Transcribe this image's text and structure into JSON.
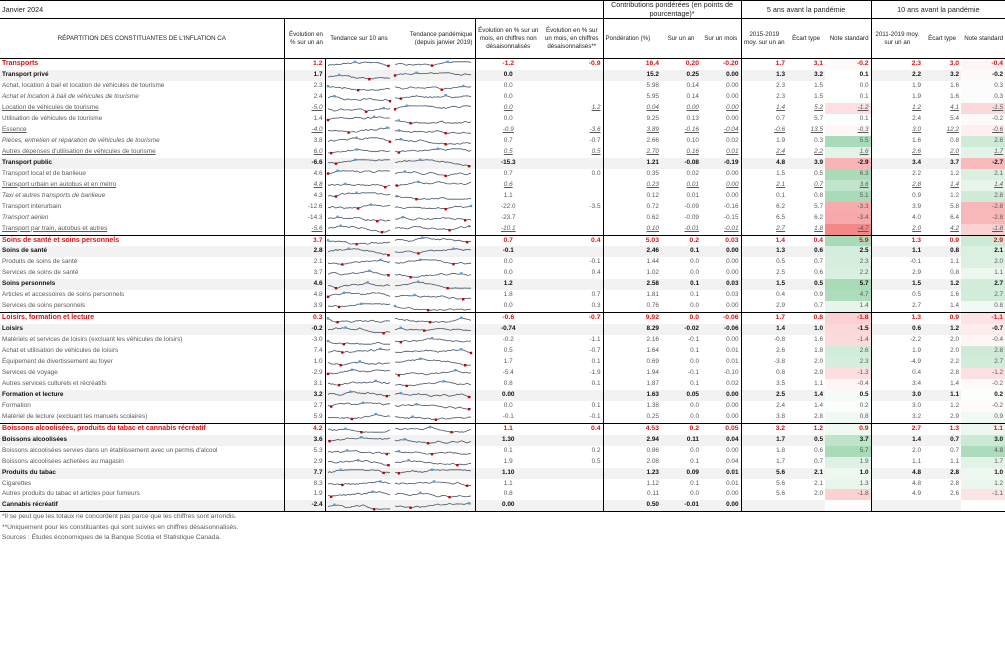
{
  "title": "Janvier 2024",
  "group_headers": {
    "contrib": "Contributions pondérées (en points de pourcentage)*",
    "five_year": "5 ans avant la pandémie",
    "ten_year": "10 ans avant la pandémie"
  },
  "columns": {
    "label": "RÉPARTITION DES CONSTITUANTES DE L'INFLATION CA",
    "yoy": "Évolution en % sur un an",
    "trend10": "Tendance sur 10 ans",
    "trend_pandemic": "Tendance pandémique (depuis janvier 2019)",
    "mom_nsa": "Évolution en % sur un mois, en chiffres non désaisonnalisés",
    "mom_sa": "Évolution en % sur un mois, en chiffres désaisonnalisés**",
    "weight": "Pondération (%)",
    "c_yoy": "Sur un an",
    "c_mom": "Sur un mois",
    "avg5": "2015-2019 moy. sur un an",
    "sd5": "Écart type",
    "z5": "Note standard",
    "avg10": "2011-2019 moy. sur un an",
    "sd10": "Écart type",
    "z10": "Note standard"
  },
  "colors": {
    "section_red": "#e01010",
    "subtotal_bg": "#f2f2f2",
    "spark_line": "#44546a",
    "spark_high": "#5b9bd5",
    "spark_low": "#c00000",
    "z_pos_strong": "#a9dbb8",
    "z_neg_strong": "#f4878a"
  },
  "rows": [
    {
      "type": "sec",
      "label": "Transports",
      "yoy": "1.2",
      "mom_nsa": "-1.2",
      "mom_sa": "-0.9",
      "weight": "16.4",
      "c_yoy": "0.20",
      "c_mom": "-0.20",
      "avg5": "1.7",
      "sd5": "3.1",
      "z5": "-0.2",
      "avg10": "2.3",
      "sd10": "3.0",
      "z10": "-0.4"
    },
    {
      "type": "sub",
      "label": "Transport privé",
      "yoy": "1.7",
      "mom_nsa": "0.0",
      "mom_sa": "",
      "weight": "15.2",
      "c_yoy": "0.25",
      "c_mom": "0.00",
      "avg5": "1.3",
      "sd5": "3.2",
      "z5": "0.1",
      "avg10": "2.2",
      "sd10": "3.2",
      "z10": "-0.2"
    },
    {
      "type": "item",
      "label": "Achat, location à bail et location de véhicules de tourisme",
      "yoy": "2.3",
      "mom_nsa": "0.0",
      "mom_sa": "",
      "weight": "5.98",
      "c_yoy": "0.14",
      "c_mom": "0.00",
      "avg5": "2.3",
      "sd5": "1.5",
      "z5": "0.0",
      "avg10": "1.9",
      "sd10": "1.6",
      "z10": "0.3"
    },
    {
      "type": "it",
      "label": "Achat et location à bail de véhicules de tourisme",
      "yoy": "2.4",
      "mom_nsa": "0.0",
      "mom_sa": "",
      "weight": "5.95",
      "c_yoy": "0.14",
      "c_mom": "0.00",
      "avg5": "2.3",
      "sd5": "1.5",
      "z5": "0.1",
      "avg10": "1.9",
      "sd10": "1.6",
      "z10": "0.3"
    },
    {
      "type": "ul",
      "label": "Location de véhicules de tourisme",
      "yoy": "-5.0",
      "mom_nsa": "0.0",
      "mom_sa": "1.2",
      "weight": "0.04",
      "c_yoy": "0.00",
      "c_mom": "0.00",
      "avg5": "1.4",
      "sd5": "5.2",
      "z5": "-1.2",
      "avg10": "1.2",
      "sd10": "4.1",
      "z10": "-1.5"
    },
    {
      "type": "item",
      "label": "Utilisation de véhicules de tourisme",
      "yoy": "1.4",
      "mom_nsa": "0.0",
      "mom_sa": "",
      "weight": "9.25",
      "c_yoy": "0.13",
      "c_mom": "0.00",
      "avg5": "0.7",
      "sd5": "5.7",
      "z5": "0.1",
      "avg10": "2.4",
      "sd10": "5.4",
      "z10": "-0.2"
    },
    {
      "type": "ul",
      "label": "Essence",
      "yoy": "-4.0",
      "mom_nsa": "-0.9",
      "mom_sa": "-3.6",
      "weight": "3.89",
      "c_yoy": "-0.16",
      "c_mom": "-0.04",
      "avg5": "-0.6",
      "sd5": "13.5",
      "z5": "-0.3",
      "avg10": "3.0",
      "sd10": "12.2",
      "z10": "-0.6"
    },
    {
      "type": "it",
      "label": "Pièces, entretien et réparation de véhicules de tourisme",
      "yoy": "3.8",
      "mom_nsa": "0.7",
      "mom_sa": "-0.7",
      "weight": "2.66",
      "c_yoy": "0.10",
      "c_mom": "0.02",
      "avg5": "1.9",
      "sd5": "0.3",
      "z5": "5.5",
      "avg10": "1.6",
      "sd10": "0.8",
      "z10": "2.8"
    },
    {
      "type": "ul",
      "label": "Autres dépenses d'utilisation de véhicules de tourisme",
      "yoy": "6.0",
      "mom_nsa": "0.5",
      "mom_sa": "0.5",
      "weight": "2.70",
      "c_yoy": "0.16",
      "c_mom": "0.01",
      "avg5": "2.4",
      "sd5": "2.2",
      "z5": "1.6",
      "avg10": "2.6",
      "sd10": "2.0",
      "z10": "1.7"
    },
    {
      "type": "sub",
      "label": "Transport public",
      "yoy": "-6.6",
      "mom_nsa": "-15.3",
      "mom_sa": "",
      "weight": "1.21",
      "c_yoy": "-0.08",
      "c_mom": "-0.19",
      "avg5": "4.8",
      "sd5": "3.9",
      "z5": "-2.9",
      "avg10": "3.4",
      "sd10": "3.7",
      "z10": "-2.7"
    },
    {
      "type": "item",
      "label": "Transport local et de banlieue",
      "yoy": "4.6",
      "mom_nsa": "0.7",
      "mom_sa": "0.0",
      "weight": "0.35",
      "c_yoy": "0.02",
      "c_mom": "0.00",
      "avg5": "1.5",
      "sd5": "0.5",
      "z5": "6.3",
      "avg10": "2.2",
      "sd10": "1.2",
      "z10": "2.1"
    },
    {
      "type": "ul",
      "label": "Transport urbain en autobus et en métro",
      "yoy": "4.8",
      "mom_nsa": "0.6",
      "mom_sa": "",
      "weight": "0.23",
      "c_yoy": "0.01",
      "c_mom": "0.00",
      "avg5": "2.1",
      "sd5": "0.7",
      "z5": "3.6",
      "avg10": "2.8",
      "sd10": "1.4",
      "z10": "1.4"
    },
    {
      "type": "it",
      "label": "Taxi et autres transports de banlieue",
      "yoy": "4.3",
      "mom_nsa": "1.1",
      "mom_sa": "",
      "weight": "0.12",
      "c_yoy": "0.01",
      "c_mom": "0.00",
      "avg5": "0.1",
      "sd5": "0.8",
      "z5": "5.1",
      "avg10": "0.9",
      "sd10": "1.2",
      "z10": "2.8"
    },
    {
      "type": "item",
      "label": "Transport interurbain",
      "yoy": "-12.6",
      "mom_nsa": "-22.0",
      "mom_sa": "-3.5",
      "weight": "0.72",
      "c_yoy": "-0.09",
      "c_mom": "-0.16",
      "avg5": "6.2",
      "sd5": "5.7",
      "z5": "-3.3",
      "avg10": "3.9",
      "sd10": "5.8",
      "z10": "-2.8"
    },
    {
      "type": "it",
      "label": "Transport aérien",
      "yoy": "-14.3",
      "mom_nsa": "-23.7",
      "mom_sa": "",
      "weight": "0.62",
      "c_yoy": "-0.09",
      "c_mom": "-0.15",
      "avg5": "6.5",
      "sd5": "6.2",
      "z5": "-3.4",
      "avg10": "4.0",
      "sd10": "6.4",
      "z10": "-2.8"
    },
    {
      "type": "ul",
      "end": true,
      "label": "Transport par train, autobus et autres",
      "yoy": "-5.6",
      "mom_nsa": "-10.1",
      "mom_sa": "",
      "weight": "0.10",
      "c_yoy": "-0.01",
      "c_mom": "-0.01",
      "avg5": "2.7",
      "sd5": "1.8",
      "z5": "-4.7",
      "avg10": "2.0",
      "sd10": "4.2",
      "z10": "-1.8"
    },
    {
      "type": "sec",
      "label": "Soins de santé et soins personnels",
      "yoy": "3.7",
      "mom_nsa": "0.7",
      "mom_sa": "0.4",
      "weight": "5.03",
      "c_yoy": "0.2",
      "c_mom": "0.03",
      "avg5": "1.4",
      "sd5": "0.4",
      "z5": "5.9",
      "avg10": "1.3",
      "sd10": "0.9",
      "z10": "2.9"
    },
    {
      "type": "sub",
      "label": "Soins de santé",
      "yoy": "2.8",
      "mom_nsa": "-0.1",
      "mom_sa": "",
      "weight": "2.46",
      "c_yoy": "0.1",
      "c_mom": "0.00",
      "avg5": "1.3",
      "sd5": "0.6",
      "z5": "2.5",
      "avg10": "1.1",
      "sd10": "0.8",
      "z10": "2.1"
    },
    {
      "type": "item",
      "label": "Produits de soins de santé",
      "yoy": "2.1",
      "mom_nsa": "0.0",
      "mom_sa": "-0.1",
      "weight": "1.44",
      "c_yoy": "0.0",
      "c_mom": "0.00",
      "avg5": "0.5",
      "sd5": "0.7",
      "z5": "2.3",
      "avg10": "-0.1",
      "sd10": "1.1",
      "z10": "2.0"
    },
    {
      "type": "item",
      "label": "Services de soins de santé",
      "yoy": "3.7",
      "mom_nsa": "0.0",
      "mom_sa": "0.4",
      "weight": "1.02",
      "c_yoy": "0.0",
      "c_mom": "0.00",
      "avg5": "2.5",
      "sd5": "0.6",
      "z5": "2.2",
      "avg10": "2.9",
      "sd10": "0.8",
      "z10": "1.1"
    },
    {
      "type": "sub",
      "label": "Soins personnels",
      "yoy": "4.6",
      "mom_nsa": "1.2",
      "mom_sa": "",
      "weight": "2.58",
      "c_yoy": "0.1",
      "c_mom": "0.03",
      "avg5": "1.5",
      "sd5": "0.5",
      "z5": "5.7",
      "avg10": "1.5",
      "sd10": "1.2",
      "z10": "2.7"
    },
    {
      "type": "item",
      "label": "Articles et accessoires de soins personnels",
      "yoy": "4.8",
      "mom_nsa": "1.8",
      "mom_sa": "0.7",
      "weight": "1.81",
      "c_yoy": "0.1",
      "c_mom": "0.03",
      "avg5": "0.4",
      "sd5": "0.9",
      "z5": "4.7",
      "avg10": "0.5",
      "sd10": "1.6",
      "z10": "2.7"
    },
    {
      "type": "item",
      "end": true,
      "label": "Services de soins personnels",
      "yoy": "3.9",
      "mom_nsa": "0.0",
      "mom_sa": "0.3",
      "weight": "0.76",
      "c_yoy": "0.0",
      "c_mom": "0.00",
      "avg5": "2.9",
      "sd5": "0.7",
      "z5": "1.4",
      "avg10": "2.7",
      "sd10": "1.4",
      "z10": "0.8"
    },
    {
      "type": "sec",
      "label": "Loisirs, formation et lecture",
      "yoy": "0.3",
      "mom_nsa": "-0.6",
      "mom_sa": "-0.7",
      "weight": "9.92",
      "c_yoy": "0.0",
      "c_mom": "-0.06",
      "avg5": "1.7",
      "sd5": "0.8",
      "z5": "-1.8",
      "avg10": "1.3",
      "sd10": "0.9",
      "z10": "-1.1"
    },
    {
      "type": "sub",
      "label": "Loisirs",
      "yoy": "-0.2",
      "mom_nsa": "-0.74",
      "mom_sa": "",
      "weight": "8.29",
      "c_yoy": "-0.02",
      "c_mom": "-0.06",
      "avg5": "1.4",
      "sd5": "1.0",
      "z5": "-1.5",
      "avg10": "0.6",
      "sd10": "1.2",
      "z10": "-0.7"
    },
    {
      "type": "item",
      "label": "Matériels et services de loisirs (excluant les véhicules de loisirs)",
      "yoy": "-3.0",
      "mom_nsa": "-0.2",
      "mom_sa": "-1.1",
      "weight": "2.16",
      "c_yoy": "-0.1",
      "c_mom": "0.00",
      "avg5": "-0.8",
      "sd5": "1.6",
      "z5": "-1.4",
      "avg10": "-2.2",
      "sd10": "2.0",
      "z10": "-0.4"
    },
    {
      "type": "item",
      "label": "Achat et utilisation de véhicules de loisirs",
      "yoy": "7.4",
      "mom_nsa": "0.5",
      "mom_sa": "-0.7",
      "weight": "1.64",
      "c_yoy": "0.1",
      "c_mom": "0.01",
      "avg5": "2.6",
      "sd5": "1.8",
      "z5": "2.6",
      "avg10": "1.9",
      "sd10": "2.0",
      "z10": "2.8"
    },
    {
      "type": "item",
      "label": "Équipement de divertissement au foyer",
      "yoy": "1.0",
      "mom_nsa": "1.7",
      "mom_sa": "0.1",
      "weight": "0.69",
      "c_yoy": "0.0",
      "c_mom": "0.01",
      "avg5": "-3.8",
      "sd5": "2.0",
      "z5": "2.3",
      "avg10": "-4.9",
      "sd10": "2.2",
      "z10": "2.7"
    },
    {
      "type": "item",
      "label": "Services de voyage",
      "yoy": "-2.9",
      "mom_nsa": "-5.4",
      "mom_sa": "-1.9",
      "weight": "1.94",
      "c_yoy": "-0.1",
      "c_mom": "-0.10",
      "avg5": "0.8",
      "sd5": "2.9",
      "z5": "-1.3",
      "avg10": "0.4",
      "sd10": "2.8",
      "z10": "-1.2"
    },
    {
      "type": "item",
      "label": "Autres services culturels et récréatifs",
      "yoy": "3.1",
      "mom_nsa": "0.8",
      "mom_sa": "0.1",
      "weight": "1.87",
      "c_yoy": "0.1",
      "c_mom": "0.02",
      "avg5": "3.5",
      "sd5": "1.1",
      "z5": "-0.4",
      "avg10": "3.4",
      "sd10": "1.4",
      "z10": "-0.2"
    },
    {
      "type": "sub",
      "label": "Formation et lecture",
      "yoy": "3.2",
      "mom_nsa": "0.00",
      "mom_sa": "",
      "weight": "1.63",
      "c_yoy": "0.05",
      "c_mom": "0.00",
      "avg5": "2.5",
      "sd5": "1.4",
      "z5": "0.5",
      "avg10": "3.0",
      "sd10": "1.1",
      "z10": "0.2"
    },
    {
      "type": "item",
      "label": "Formation",
      "yoy": "2.7",
      "mom_nsa": "0.0",
      "mom_sa": "0.1",
      "weight": "1.38",
      "c_yoy": "0.0",
      "c_mom": "0.00",
      "avg5": "2.4",
      "sd5": "1.4",
      "z5": "0.2",
      "avg10": "3.0",
      "sd10": "1.2",
      "z10": "-0.2"
    },
    {
      "type": "item",
      "end": true,
      "label": "Matériel de lecture (excluant les manuels scolaires)",
      "yoy": "5.9",
      "mom_nsa": "-0.1",
      "mom_sa": "-0.1",
      "weight": "0.25",
      "c_yoy": "0.0",
      "c_mom": "0.00",
      "avg5": "3.8",
      "sd5": "2.8",
      "z5": "0.8",
      "avg10": "3.2",
      "sd10": "2.9",
      "z10": "0.9"
    },
    {
      "type": "sec",
      "label": "Boissons alcoolisées, produits du tabac et cannabis récréatif",
      "yoy": "4.2",
      "mom_nsa": "1.1",
      "mom_sa": "0.4",
      "weight": "4.53",
      "c_yoy": "0.2",
      "c_mom": "0.05",
      "avg5": "3.2",
      "sd5": "1.2",
      "z5": "0.9",
      "avg10": "2.7",
      "sd10": "1.3",
      "z10": "1.1"
    },
    {
      "type": "sub",
      "label": "Boissons alcoolisées",
      "yoy": "3.6",
      "mom_nsa": "1.30",
      "mom_sa": "",
      "weight": "2.94",
      "c_yoy": "0.11",
      "c_mom": "0.04",
      "avg5": "1.7",
      "sd5": "0.5",
      "z5": "3.7",
      "avg10": "1.4",
      "sd10": "0.7",
      "z10": "3.0"
    },
    {
      "type": "item",
      "label": "Boissons alcoolisées servies dans un établissement avec un permis d'alcool",
      "yoy": "5.3",
      "mom_nsa": "0.1",
      "mom_sa": "0.2",
      "weight": "0.86",
      "c_yoy": "0.0",
      "c_mom": "0.00",
      "avg5": "1.8",
      "sd5": "0.6",
      "z5": "5.7",
      "avg10": "2.0",
      "sd10": "0.7",
      "z10": "4.8"
    },
    {
      "type": "item",
      "label": "Boissons alcoolisées achetées au magasin",
      "yoy": "2.9",
      "mom_nsa": "1.9",
      "mom_sa": "0.5",
      "weight": "2.08",
      "c_yoy": "0.1",
      "c_mom": "0.04",
      "avg5": "1.7",
      "sd5": "0.7",
      "z5": "1.9",
      "avg10": "1.1",
      "sd10": "1.1",
      "z10": "1.7"
    },
    {
      "type": "sub",
      "label": "Produits du tabac",
      "yoy": "7.7",
      "mom_nsa": "1.10",
      "mom_sa": "",
      "weight": "1.23",
      "c_yoy": "0.09",
      "c_mom": "0.01",
      "avg5": "5.6",
      "sd5": "2.1",
      "z5": "1.0",
      "avg10": "4.8",
      "sd10": "2.8",
      "z10": "1.0"
    },
    {
      "type": "item",
      "label": "Cigarettes",
      "yoy": "8.3",
      "mom_nsa": "1.1",
      "mom_sa": "",
      "weight": "1.12",
      "c_yoy": "0.1",
      "c_mom": "0.01",
      "avg5": "5.6",
      "sd5": "2.1",
      "z5": "1.3",
      "avg10": "4.8",
      "sd10": "2.8",
      "z10": "1.2"
    },
    {
      "type": "item",
      "label": "Autres produits du tabac et articles pour fumeurs",
      "yoy": "1.9",
      "mom_nsa": "0.8",
      "mom_sa": "",
      "weight": "0.11",
      "c_yoy": "0.0",
      "c_mom": "0.00",
      "avg5": "5.6",
      "sd5": "2.0",
      "z5": "-1.8",
      "avg10": "4.9",
      "sd10": "2.6",
      "z10": "-1.1"
    },
    {
      "type": "sub",
      "end": true,
      "label": "Cannabis récréatif",
      "yoy": "-2.4",
      "mom_nsa": "0.00",
      "mom_sa": "",
      "weight": "0.50",
      "c_yoy": "-0.01",
      "c_mom": "0.00",
      "avg5": "",
      "sd5": "",
      "z5": "",
      "avg10": "",
      "sd10": "",
      "z10": ""
    }
  ],
  "footnotes": [
    "*Il se peut que les totaux ne concordent pas parce que les chiffres sont arrondis.",
    "**Uniquement pour les constituantes qui sont suivies en chiffres désaisonnalisés.",
    "Sources : Études économiques de la Banque Scotia et Statistique Canada."
  ]
}
